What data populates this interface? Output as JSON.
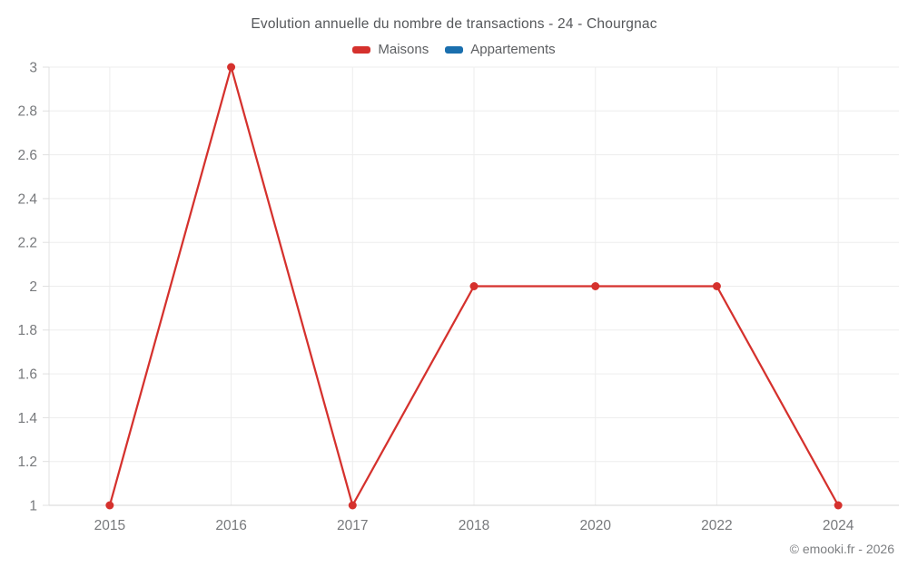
{
  "title": "Evolution annuelle du nombre de transactions - 24 - Chourgnac",
  "legend": {
    "items": [
      {
        "label": "Maisons",
        "color": "#d5312d"
      },
      {
        "label": "Appartements",
        "color": "#1a6fae"
      }
    ]
  },
  "footer": {
    "credit": "© emooki.fr - 2026"
  },
  "chart_data": {
    "type": "line",
    "title": "Evolution annuelle du nombre de transactions - 24 - Chourgnac",
    "categories": [
      "2015",
      "2016",
      "2017",
      "2018",
      "2020",
      "2022",
      "2024"
    ],
    "series": [
      {
        "name": "Maisons",
        "color": "#d5312d",
        "values": [
          1,
          3,
          1,
          2,
          2,
          2,
          1
        ]
      },
      {
        "name": "Appartements",
        "color": "#1a6fae",
        "values": []
      }
    ],
    "xlabel": "",
    "ylabel": "",
    "ylim": [
      1,
      3
    ],
    "yticks": [
      "1",
      "1.2",
      "1.4",
      "1.6",
      "1.8",
      "2",
      "2.2",
      "2.4",
      "2.6",
      "2.8",
      "3"
    ],
    "grid": "on",
    "legend_position": "top",
    "theme": {
      "grid_color": "#ededed",
      "axis_line_color": "#e0e0e0",
      "baseline_color": "#d6d6d6",
      "tick_label_color": "#77797c",
      "title_color": "#55575a",
      "background": "#ffffff"
    }
  }
}
